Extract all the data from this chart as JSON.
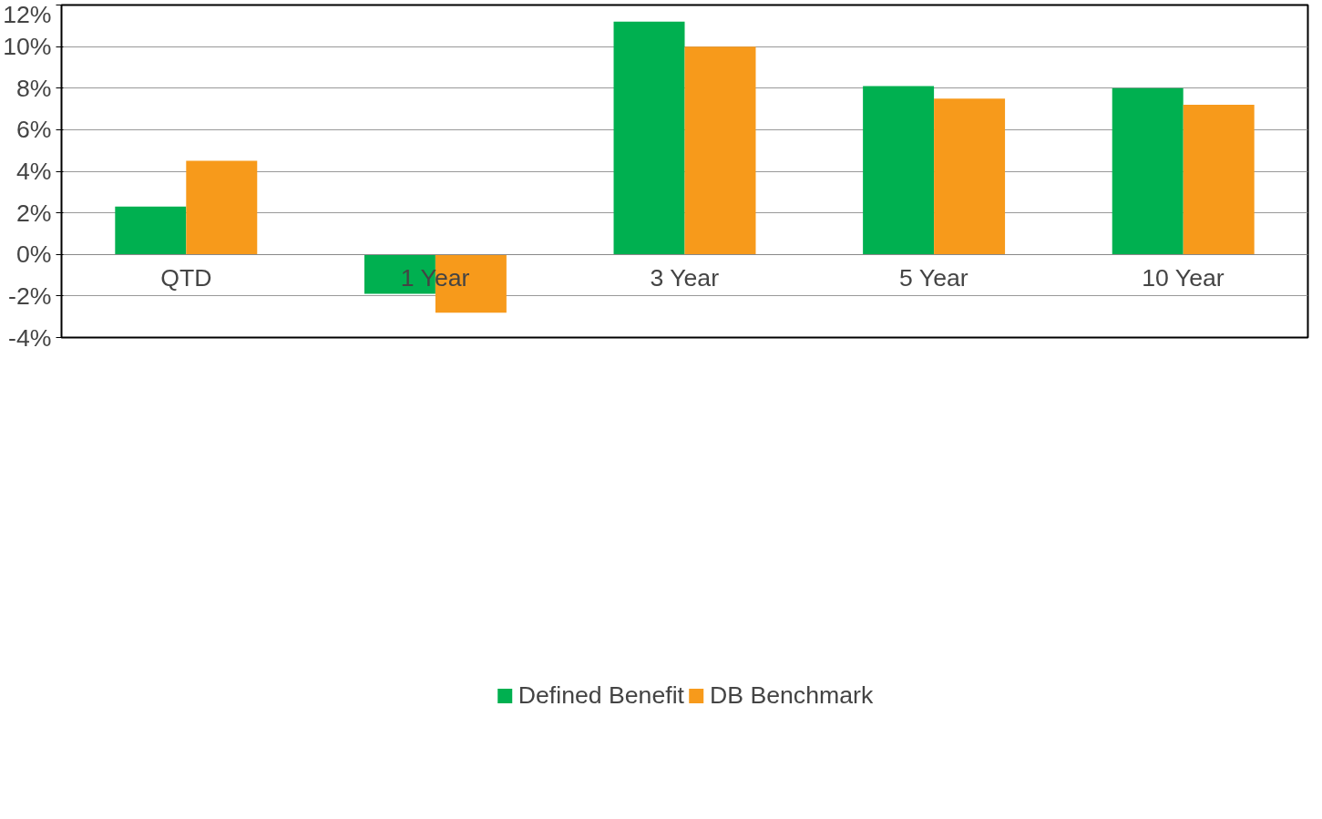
{
  "chart_data": {
    "type": "bar",
    "categories": [
      "QTD",
      "1 Year",
      "3 Year",
      "5 Year",
      "10 Year"
    ],
    "series": [
      {
        "name": "Defined Benefit",
        "color": "#00b050",
        "values": [
          2.3,
          -1.9,
          11.2,
          8.1,
          8.0
        ]
      },
      {
        "name": "DB Benchmark",
        "color": "#f79a1b",
        "values": [
          4.5,
          -2.8,
          10.0,
          7.5,
          7.2
        ]
      }
    ],
    "ylim": [
      -4,
      12
    ],
    "yticks": [
      {
        "value": -4,
        "label": "-4%"
      },
      {
        "value": -2,
        "label": "-2%"
      },
      {
        "value": 0,
        "label": "0%"
      },
      {
        "value": 2,
        "label": "2%"
      },
      {
        "value": 4,
        "label": "4%"
      },
      {
        "value": 6,
        "label": "6%"
      },
      {
        "value": 8,
        "label": "8%"
      },
      {
        "value": 10,
        "label": "10%"
      },
      {
        "value": 12,
        "label": "12%"
      }
    ],
    "grid": "y",
    "legend": "bottom"
  }
}
